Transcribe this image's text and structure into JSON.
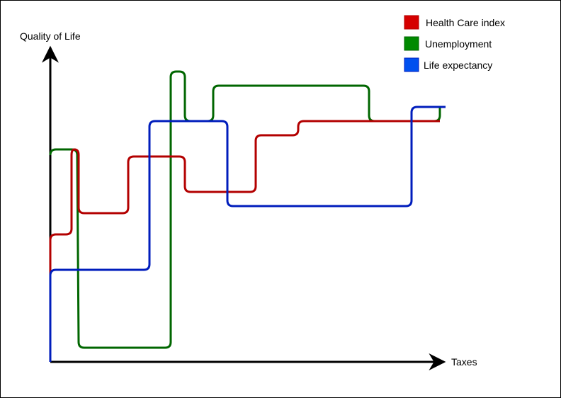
{
  "axes": {
    "x_label": "Taxes",
    "y_label": "Quality of Life"
  },
  "legend": [
    {
      "label": "Health Care index",
      "color": "#d50000",
      "stroke": "#b30000"
    },
    {
      "label": "Unemployment",
      "color": "#008a00",
      "stroke": "#006600"
    },
    {
      "label": "Life expectancy",
      "color": "#0050ef",
      "stroke": "#001dbc"
    }
  ],
  "curve_colors": {
    "health": "#b30000",
    "unemployment": "#006600",
    "life": "#001dbc",
    "axis": "#000000"
  }
}
